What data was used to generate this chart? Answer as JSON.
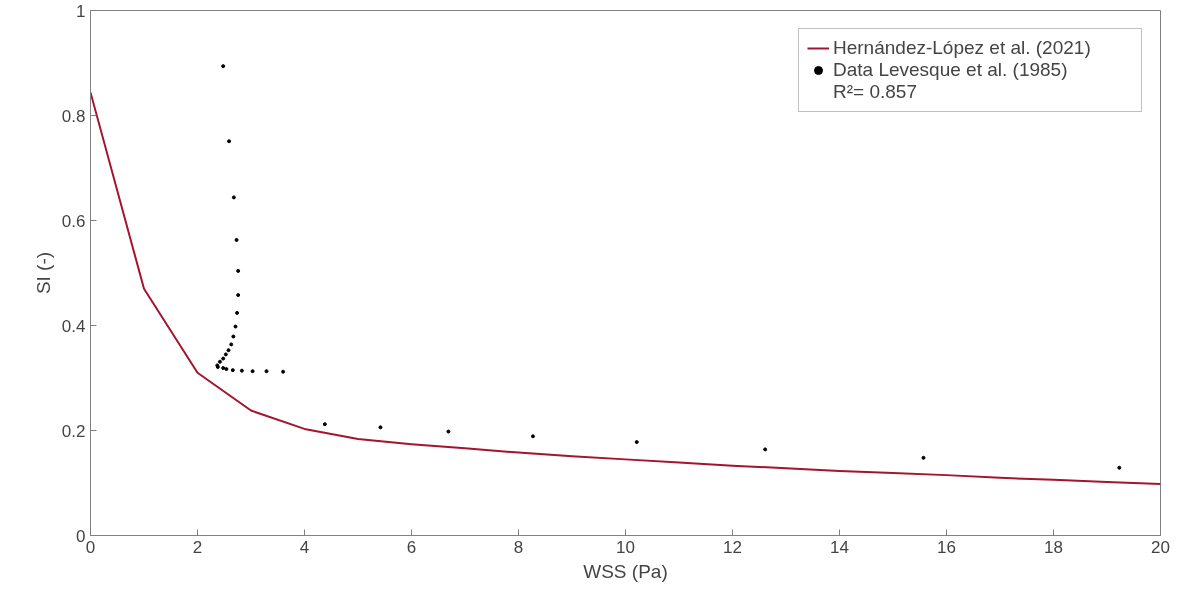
{
  "chart_data": {
    "type": "line",
    "xlabel": "WSS (Pa)",
    "ylabel": "SI (-)",
    "xlim": [
      0,
      20
    ],
    "ylim": [
      0,
      1
    ],
    "xticks": [
      0,
      2,
      4,
      6,
      8,
      10,
      12,
      14,
      16,
      18,
      20
    ],
    "yticks": [
      0,
      0.2,
      0.4,
      0.6,
      0.8,
      1
    ],
    "grid": false,
    "legend": "top right",
    "annotations": [
      "R²= 0.857"
    ],
    "series": [
      {
        "name": "Hernández-López et al. (2021)",
        "color": "#a2142f",
        "marker": "none",
        "line_style": "solid",
        "x": [
          0,
          1,
          2,
          3,
          4,
          5,
          6,
          7,
          8,
          9,
          10,
          11,
          12,
          13,
          14,
          15,
          16,
          17,
          18,
          19,
          20
        ],
        "values": [
          0.844,
          0.47,
          0.31,
          0.238,
          0.203,
          0.184,
          0.174,
          0.166,
          0.158,
          0.151,
          0.145,
          0.139,
          0.133,
          0.128,
          0.123,
          0.119,
          0.115,
          0.11,
          0.106,
          0.102,
          0.098
        ]
      },
      {
        "name": "Data Levesque et al. (1985)",
        "type": "scatter",
        "color": "#000000",
        "marker": "circle",
        "x": [
          2.48,
          2.59,
          2.68,
          2.73,
          2.76,
          2.76,
          2.74,
          2.71,
          2.67,
          2.63,
          2.58,
          2.53,
          2.48,
          2.42,
          2.37,
          2.38,
          2.48,
          2.54,
          2.66,
          2.83,
          3.03,
          3.29,
          3.6,
          4.38,
          5.42,
          6.69,
          8.27,
          10.21,
          12.61,
          15.57,
          19.23
        ],
        "values": [
          0.894,
          0.751,
          0.644,
          0.563,
          0.504,
          0.458,
          0.424,
          0.398,
          0.379,
          0.364,
          0.353,
          0.345,
          0.337,
          0.331,
          0.324,
          0.321,
          0.319,
          0.317,
          0.315,
          0.314,
          0.313,
          0.313,
          0.312,
          0.212,
          0.206,
          0.198,
          0.189,
          0.178,
          0.164,
          0.148,
          0.129
        ]
      }
    ]
  }
}
